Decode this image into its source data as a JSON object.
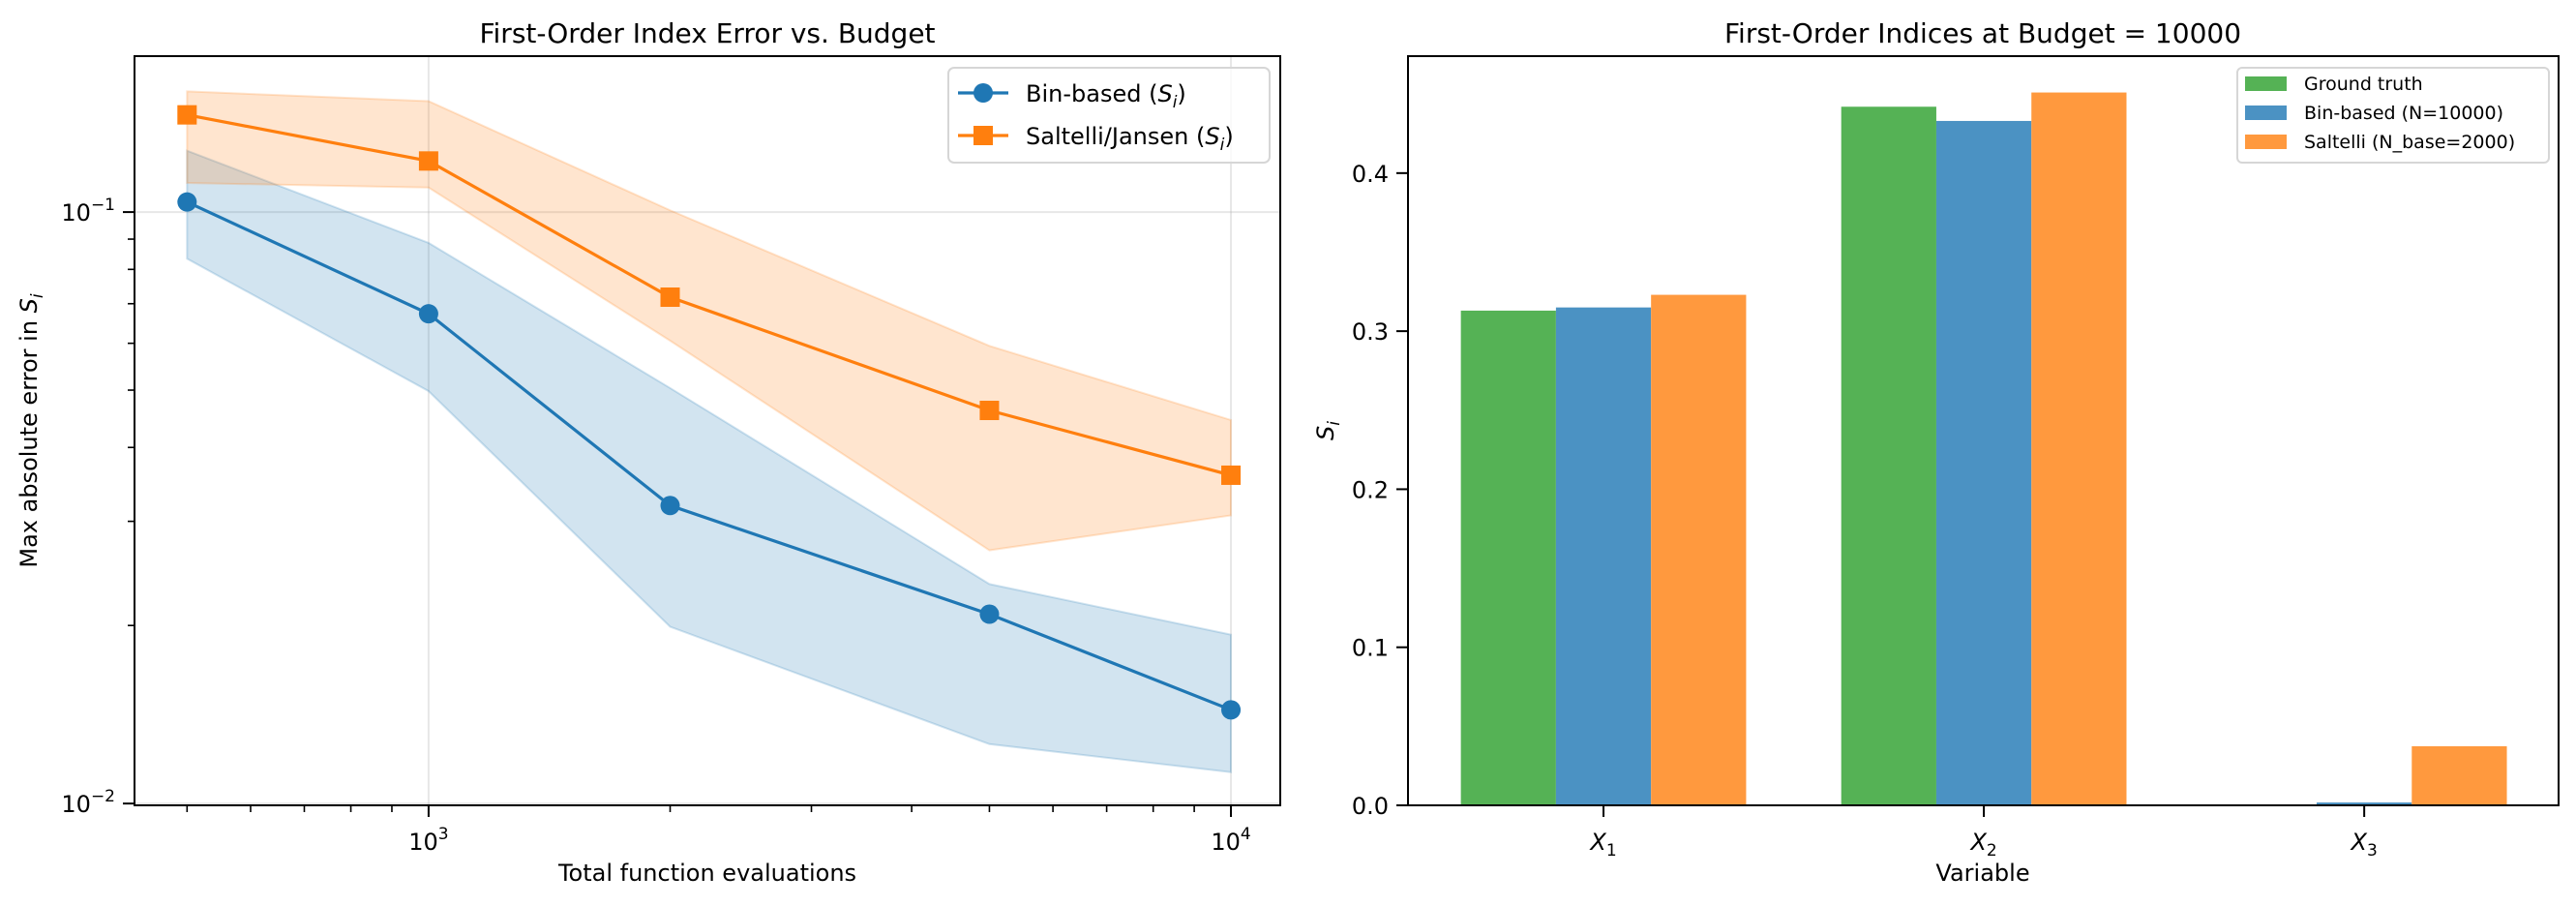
{
  "chart_data": [
    {
      "type": "line",
      "title": "First-Order Index Error vs. Budget",
      "xlabel": "Total function evaluations",
      "ylabel": "Max absolute error in S_i",
      "xscale": "log",
      "yscale": "log",
      "xlim": [
        430,
        11520
      ],
      "ylim": [
        0.00993,
        0.1835
      ],
      "x": [
        500,
        1000,
        2000,
        5000,
        10000
      ],
      "xticks": [
        {
          "value": 1000,
          "base": "10",
          "exp": "3"
        },
        {
          "value": 10000,
          "base": "10",
          "exp": "4"
        }
      ],
      "yticks": [
        {
          "value": 0.1,
          "base": "10",
          "exp": "−1"
        },
        {
          "value": 0.01,
          "base": "10",
          "exp": "−2"
        }
      ],
      "grid": true,
      "legend": "top-right",
      "series": [
        {
          "name": "Bin-based",
          "legend_label": "Bin-based (",
          "legend_sym": "S",
          "legend_sub": "i",
          "legend_tail": ")",
          "color": "#1f77b4",
          "marker": "circle",
          "values": [
            0.104,
            0.0673,
            0.0319,
            0.0209,
            0.0144
          ],
          "band_lower": [
            0.0834,
            0.0498,
            0.0199,
            0.0126,
            0.0113
          ],
          "band_upper": [
            0.127,
            0.0887,
            0.0504,
            0.0235,
            0.0193
          ]
        },
        {
          "name": "Saltelli/Jansen",
          "legend_label": "Saltelli/Jansen (",
          "legend_sym": "S",
          "legend_sub": "i",
          "legend_tail": ")",
          "color": "#ff7f0e",
          "marker": "square",
          "values": [
            0.146,
            0.122,
            0.0718,
            0.0462,
            0.0359
          ],
          "band_lower": [
            0.112,
            0.11,
            0.0606,
            0.0268,
            0.0307
          ],
          "band_upper": [
            0.16,
            0.154,
            0.1007,
            0.0594,
            0.0445
          ]
        }
      ]
    },
    {
      "type": "bar",
      "title": "First-Order Indices at Budget = 10000",
      "xlabel": "Variable",
      "ylabel": "S_i",
      "categories": [
        {
          "sym": "X",
          "sub": "1"
        },
        {
          "sym": "X",
          "sub": "2"
        },
        {
          "sym": "X",
          "sub": "3"
        }
      ],
      "ylim": [
        0,
        0.474
      ],
      "yticks": [
        "0.0",
        "0.1",
        "0.2",
        "0.3",
        "0.4"
      ],
      "grid": false,
      "legend": "top-right",
      "series": [
        {
          "name": "Ground truth",
          "color": "#55b255",
          "values": [
            0.313,
            0.442,
            0.0
          ]
        },
        {
          "name": "Bin-based (N=10000)",
          "color": "#4b92c3",
          "values": [
            0.315,
            0.433,
            0.0018
          ]
        },
        {
          "name": "Saltelli (N_base=2000)",
          "color": "#ff993e",
          "values": [
            0.323,
            0.451,
            0.0374
          ]
        }
      ]
    }
  ]
}
